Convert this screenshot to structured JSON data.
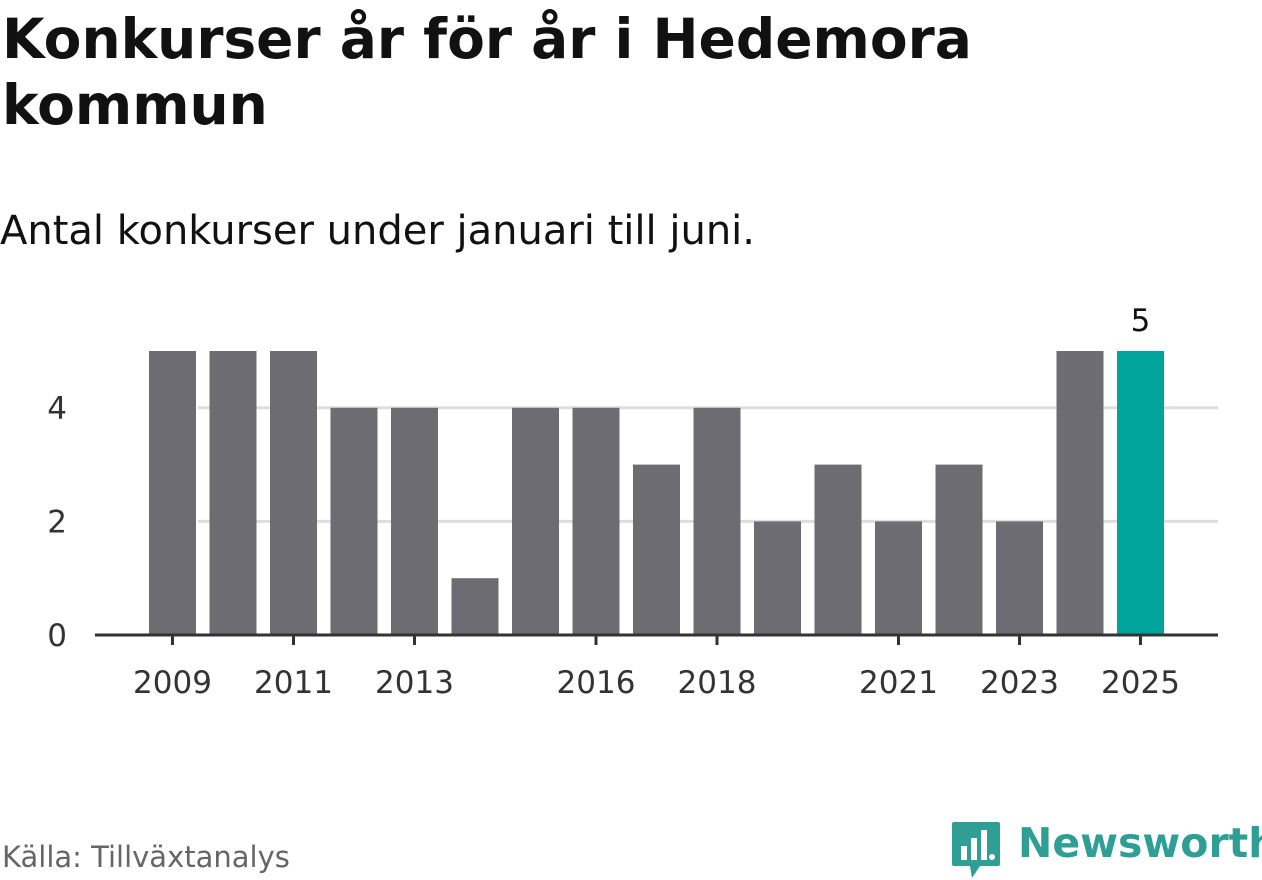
{
  "header": {
    "title": "Konkurser år för år i Hedemora kommun",
    "subtitle": "Antal konkurser under januari till juni."
  },
  "footer": {
    "source": "Källa: Tillväxtanalys",
    "brand": "Newsworthy"
  },
  "colors": {
    "bar": "#6d6c73",
    "highlight": "#00a49a",
    "brand": "#2f9e95",
    "grid": "#dddddd",
    "axis": "#333333"
  },
  "icons": {
    "brand_logo": "bar-chart-speech-bubble-icon"
  },
  "chart_data": {
    "type": "bar",
    "categories": [
      "2009",
      "2010",
      "2011",
      "2012",
      "2013",
      "2014",
      "2015",
      "2016",
      "2017",
      "2018",
      "2019",
      "2020",
      "2021",
      "2022",
      "2023",
      "2024",
      "2025"
    ],
    "values": [
      5,
      5,
      5,
      4,
      4,
      1,
      4,
      4,
      3,
      4,
      2,
      3,
      2,
      3,
      2,
      5,
      5
    ],
    "highlight_index": 16,
    "highlight_label": "5",
    "x_tick_labels": [
      "2009",
      "2011",
      "2013",
      "2016",
      "2018",
      "2021",
      "2023",
      "2025"
    ],
    "y_ticks": [
      0,
      2,
      4
    ],
    "ylim": [
      0,
      5
    ],
    "grid": true,
    "xlabel": "",
    "ylabel": ""
  }
}
